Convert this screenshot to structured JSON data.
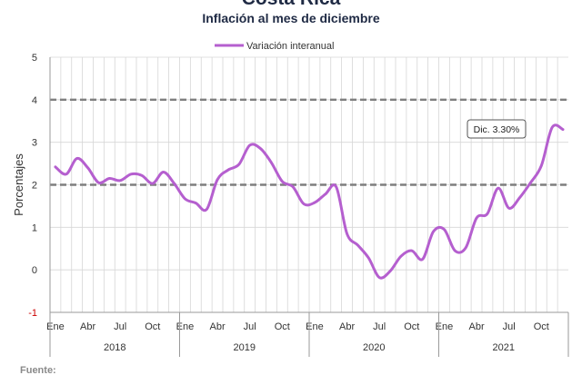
{
  "title": "Costa Rica",
  "subtitle": "Inflación al mes de diciembre",
  "source_label": "Fuente:",
  "chart_data": {
    "type": "line",
    "title": "Inflación al mes de diciembre",
    "ylabel": "Porcentajes",
    "xlabel": "",
    "ylim": [
      -1,
      5
    ],
    "yticks": [
      "-1",
      "0",
      "1",
      "2",
      "3",
      "4",
      "5"
    ],
    "x_month_labels": [
      "Ene",
      "Abr",
      "Jul",
      "Oct",
      "Ene",
      "Abr",
      "Jul",
      "Oct",
      "Ene",
      "Abr",
      "Jul",
      "Oct",
      "Ene",
      "Abr",
      "Jul",
      "Oct"
    ],
    "x_year_labels": [
      "2018",
      "2019",
      "2020",
      "2021"
    ],
    "reference_lines": [
      2,
      4
    ],
    "legend": "Variación interanual",
    "legend_position": "top-center",
    "grid": true,
    "annotation": "Dic. 3.30%",
    "series": [
      {
        "name": "Variación interanual",
        "color": "#b55fcf",
        "x": [
          "2018-01",
          "2018-02",
          "2018-03",
          "2018-04",
          "2018-05",
          "2018-06",
          "2018-07",
          "2018-08",
          "2018-09",
          "2018-10",
          "2018-11",
          "2018-12",
          "2019-01",
          "2019-02",
          "2019-03",
          "2019-04",
          "2019-05",
          "2019-06",
          "2019-07",
          "2019-08",
          "2019-09",
          "2019-10",
          "2019-11",
          "2019-12",
          "2020-01",
          "2020-02",
          "2020-03",
          "2020-04",
          "2020-05",
          "2020-06",
          "2020-07",
          "2020-08",
          "2020-09",
          "2020-10",
          "2020-11",
          "2020-12",
          "2021-01",
          "2021-02",
          "2021-03",
          "2021-04",
          "2021-05",
          "2021-06",
          "2021-07",
          "2021-08",
          "2021-09",
          "2021-10",
          "2021-11",
          "2021-12"
        ],
        "values": [
          2.42,
          2.25,
          2.62,
          2.4,
          2.05,
          2.15,
          2.1,
          2.25,
          2.22,
          2.03,
          2.3,
          2.03,
          1.67,
          1.57,
          1.42,
          2.12,
          2.35,
          2.48,
          2.93,
          2.85,
          2.52,
          2.08,
          1.95,
          1.55,
          1.58,
          1.78,
          1.95,
          0.85,
          0.58,
          0.28,
          -0.18,
          -0.03,
          0.32,
          0.45,
          0.25,
          0.9,
          0.95,
          0.45,
          0.52,
          1.22,
          1.32,
          1.92,
          1.45,
          1.7,
          2.05,
          2.45,
          3.35,
          3.3
        ]
      }
    ]
  }
}
